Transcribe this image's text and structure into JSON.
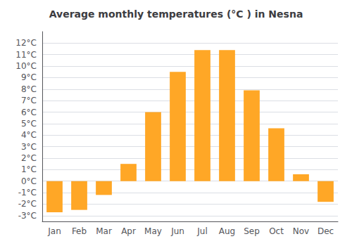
{
  "chart_data": {
    "type": "bar",
    "title": "Average monthly temperatures (°C ) in Nesna",
    "categories": [
      "Jan",
      "Feb",
      "Mar",
      "Apr",
      "May",
      "Jun",
      "Jul",
      "Aug",
      "Sep",
      "Oct",
      "Nov",
      "Dec"
    ],
    "values": [
      -2.7,
      -2.5,
      -1.2,
      1.5,
      6.0,
      9.5,
      11.4,
      11.4,
      7.9,
      4.6,
      0.6,
      -1.8
    ],
    "color": "#FFA726",
    "ylim": [
      -3.5,
      13.0
    ],
    "yticks": [
      {
        "value": -3,
        "label": "-3°C"
      },
      {
        "value": -2,
        "label": "-2°C"
      },
      {
        "value": -1,
        "label": "-1°C"
      },
      {
        "value": 0,
        "label": "0°C"
      },
      {
        "value": 1,
        "label": "1°C"
      },
      {
        "value": 2,
        "label": "2°C"
      },
      {
        "value": 3,
        "label": "3°C"
      },
      {
        "value": 4,
        "label": "4°C"
      },
      {
        "value": 5,
        "label": "5°C"
      },
      {
        "value": 6,
        "label": "6°C"
      },
      {
        "value": 7,
        "label": "7°C"
      },
      {
        "value": 8,
        "label": "8°C"
      },
      {
        "value": 9,
        "label": "9°C"
      },
      {
        "value": 10,
        "label": "10°C"
      },
      {
        "value": 11,
        "label": "11°C"
      },
      {
        "value": 12,
        "label": "12°C"
      }
    ],
    "grid": true
  }
}
